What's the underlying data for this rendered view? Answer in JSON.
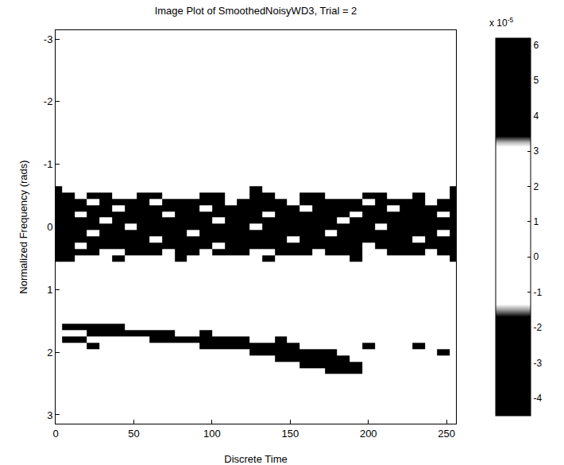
{
  "chart_data": {
    "type": "heatmap",
    "title": "Image Plot of SmoothedNoisyWD3, Trial = 2",
    "x_label": "Discrete Time",
    "y_label": "Normalized Frequency (rads)",
    "xlim": [
      0,
      256
    ],
    "xticks": [
      0,
      50,
      100,
      150,
      200,
      250
    ],
    "ylim": [
      3.14,
      -3.14
    ],
    "yticks": [
      -3,
      -2,
      -1,
      0,
      1,
      2,
      3
    ],
    "x": [
      0,
      8,
      16,
      24,
      32,
      40,
      48,
      56,
      64,
      72,
      80,
      88,
      96,
      104,
      112,
      120,
      128,
      136,
      144,
      152,
      160,
      168,
      176,
      184,
      192,
      200,
      208,
      216,
      224,
      232,
      240,
      248,
      256
    ],
    "y": [
      -0.6,
      -0.5,
      -0.4,
      -0.3,
      -0.2,
      -0.1,
      0,
      0.1,
      0.2,
      0.3,
      0.4,
      0.5,
      0.6,
      1.5,
      1.6,
      1.7,
      1.8,
      1.9,
      2.0,
      2.1,
      2.2,
      2.3,
      2.4
    ],
    "cells": [
      [
        4,
        0,
        0,
        0,
        0,
        0,
        0,
        0,
        0,
        0,
        0,
        0,
        0,
        0,
        0,
        0,
        4,
        0,
        0,
        0,
        0,
        0,
        0,
        0,
        0,
        0,
        0,
        0,
        0,
        0,
        0,
        0,
        4
      ],
      [
        5,
        5,
        0,
        4,
        4,
        0,
        0,
        5,
        5,
        0,
        0,
        0,
        4,
        4,
        0,
        0,
        5,
        5,
        0,
        0,
        4,
        4,
        0,
        0,
        0,
        5,
        5,
        0,
        0,
        4,
        0,
        0,
        5
      ],
      [
        -3,
        -3,
        -3,
        0,
        -3,
        -3,
        -3,
        -3,
        0,
        -3,
        -3,
        -3,
        -3,
        -3,
        0,
        -3,
        -3,
        -3,
        -3,
        0,
        -3,
        -3,
        -3,
        -3,
        -3,
        0,
        -3,
        -3,
        -3,
        -3,
        0,
        -3,
        -3
      ],
      [
        5,
        5,
        5,
        5,
        5,
        0,
        5,
        5,
        5,
        5,
        5,
        5,
        0,
        5,
        5,
        5,
        5,
        5,
        5,
        5,
        0,
        5,
        5,
        5,
        5,
        5,
        5,
        0,
        5,
        5,
        5,
        5,
        5
      ],
      [
        -4,
        -4,
        0,
        -4,
        -4,
        -4,
        -4,
        -4,
        -4,
        0,
        -4,
        -4,
        -4,
        -4,
        -4,
        -4,
        -4,
        0,
        -4,
        -4,
        -4,
        -4,
        -4,
        -4,
        0,
        -4,
        -4,
        -4,
        -4,
        -4,
        -4,
        0,
        -4
      ],
      [
        6,
        6,
        6,
        6,
        0,
        6,
        6,
        6,
        6,
        6,
        6,
        6,
        6,
        0,
        6,
        6,
        6,
        6,
        6,
        6,
        6,
        6,
        6,
        0,
        6,
        6,
        6,
        6,
        6,
        6,
        6,
        6,
        6
      ],
      [
        -4,
        -4,
        -4,
        -4,
        -4,
        -4,
        0,
        -4,
        -4,
        -4,
        -4,
        -4,
        -4,
        -4,
        -4,
        -4,
        0,
        -4,
        -4,
        -4,
        -4,
        -4,
        -4,
        -4,
        -4,
        -4,
        0,
        -4,
        -4,
        -4,
        -4,
        -4,
        -4
      ],
      [
        6,
        6,
        6,
        0,
        6,
        6,
        6,
        6,
        6,
        6,
        6,
        0,
        6,
        6,
        6,
        6,
        6,
        6,
        6,
        6,
        6,
        6,
        0,
        6,
        6,
        6,
        6,
        6,
        6,
        6,
        6,
        0,
        6
      ],
      [
        -3,
        -3,
        -3,
        -3,
        -3,
        -3,
        -3,
        -3,
        0,
        -3,
        -3,
        -3,
        -3,
        -3,
        -3,
        -3,
        -3,
        -3,
        -3,
        0,
        -3,
        -3,
        -3,
        -3,
        -3,
        -3,
        -3,
        -3,
        -3,
        0,
        -3,
        -3,
        -3
      ],
      [
        5,
        5,
        0,
        5,
        5,
        5,
        5,
        5,
        5,
        5,
        5,
        5,
        5,
        0,
        5,
        5,
        5,
        5,
        5,
        5,
        5,
        5,
        5,
        5,
        5,
        0,
        5,
        5,
        5,
        5,
        5,
        5,
        5
      ],
      [
        -2,
        -2,
        -2,
        -2,
        0,
        0,
        -2,
        -2,
        -2,
        0,
        -2,
        -2,
        0,
        -2,
        -2,
        -2,
        0,
        0,
        -2,
        -2,
        -2,
        0,
        -2,
        -2,
        -2,
        0,
        0,
        -2,
        -2,
        -2,
        0,
        -2,
        -2
      ],
      [
        4,
        4,
        0,
        0,
        0,
        4,
        0,
        0,
        0,
        0,
        4,
        0,
        0,
        0,
        0,
        0,
        0,
        4,
        0,
        0,
        0,
        0,
        0,
        0,
        4,
        0,
        0,
        0,
        0,
        0,
        0,
        0,
        4
      ],
      [
        0,
        0,
        0,
        0,
        0,
        0,
        0,
        0,
        0,
        0,
        0,
        0,
        0,
        0,
        0,
        0,
        0,
        0,
        0,
        0,
        0,
        0,
        0,
        0,
        0,
        0,
        0,
        0,
        0,
        0,
        0,
        0,
        0
      ],
      [
        0,
        0,
        0,
        0,
        0,
        0,
        0,
        0,
        0,
        0,
        0,
        0,
        0,
        0,
        0,
        0,
        0,
        0,
        0,
        0,
        0,
        0,
        0,
        0,
        0,
        0,
        0,
        0,
        0,
        0,
        0,
        0,
        0
      ],
      [
        0,
        5,
        5,
        5,
        5,
        5,
        0,
        0,
        0,
        0,
        0,
        0,
        0,
        0,
        0,
        0,
        0,
        0,
        0,
        0,
        0,
        0,
        0,
        0,
        0,
        0,
        0,
        0,
        0,
        0,
        0,
        0,
        0
      ],
      [
        0,
        0,
        0,
        -3,
        -3,
        -3,
        -3,
        -3,
        -3,
        -3,
        0,
        0,
        -3,
        0,
        0,
        0,
        0,
        0,
        0,
        0,
        0,
        0,
        0,
        0,
        0,
        0,
        0,
        0,
        0,
        0,
        0,
        0,
        0
      ],
      [
        0,
        4,
        4,
        0,
        0,
        0,
        0,
        0,
        5,
        5,
        5,
        5,
        5,
        5,
        5,
        5,
        0,
        0,
        5,
        0,
        0,
        0,
        0,
        0,
        0,
        0,
        0,
        0,
        0,
        0,
        0,
        0,
        0
      ],
      [
        0,
        0,
        0,
        -3,
        0,
        0,
        0,
        0,
        0,
        0,
        0,
        0,
        -3,
        -3,
        -3,
        -3,
        -3,
        -3,
        -3,
        -3,
        0,
        0,
        0,
        0,
        0,
        -3,
        0,
        0,
        0,
        -3,
        0,
        0,
        0
      ],
      [
        0,
        0,
        0,
        0,
        0,
        0,
        0,
        0,
        0,
        0,
        0,
        0,
        0,
        0,
        0,
        0,
        5,
        5,
        5,
        5,
        5,
        5,
        5,
        0,
        0,
        0,
        0,
        0,
        0,
        0,
        0,
        5,
        0
      ],
      [
        0,
        0,
        0,
        0,
        0,
        0,
        0,
        0,
        0,
        0,
        0,
        0,
        0,
        0,
        0,
        0,
        0,
        0,
        -3,
        -3,
        -3,
        -3,
        -3,
        -3,
        0,
        0,
        0,
        0,
        0,
        0,
        0,
        0,
        0
      ],
      [
        0,
        0,
        0,
        0,
        0,
        0,
        0,
        0,
        0,
        0,
        0,
        0,
        0,
        0,
        0,
        0,
        0,
        0,
        0,
        0,
        5,
        5,
        5,
        5,
        5,
        0,
        0,
        0,
        0,
        0,
        0,
        0,
        0
      ],
      [
        0,
        0,
        0,
        0,
        0,
        0,
        0,
        0,
        0,
        0,
        0,
        0,
        0,
        0,
        0,
        0,
        0,
        0,
        0,
        0,
        0,
        0,
        -3,
        -3,
        -3,
        0,
        0,
        0,
        0,
        0,
        0,
        0,
        0
      ],
      [
        0,
        0,
        0,
        0,
        0,
        0,
        0,
        0,
        0,
        0,
        0,
        0,
        0,
        0,
        0,
        0,
        0,
        0,
        0,
        0,
        0,
        0,
        0,
        0,
        0,
        0,
        0,
        0,
        0,
        0,
        0,
        0,
        0
      ]
    ],
    "color_range": [
      -4.5,
      6.2
    ],
    "color_ticks": [
      -4,
      -3,
      -2,
      -1,
      0,
      1,
      2,
      3,
      4,
      5,
      6
    ],
    "colorbar_scale_label": "x 10",
    "colorbar_scale_exponent": -5,
    "grid": false
  }
}
